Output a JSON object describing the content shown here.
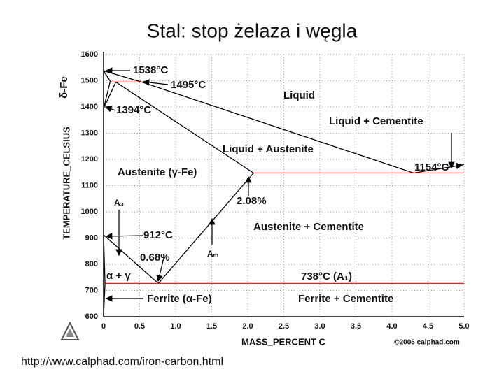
{
  "chart_data": {
    "type": "line",
    "title": "Stal: stop żelaza i węgla",
    "ylabel": "TEMPERATURE_CELSIUS",
    "xlabel": "MASS_PERCENT C",
    "credit": "©2006 calphad.com",
    "source": "http://www.calphad.com/iron-carbon.html",
    "xlim": [
      0,
      5
    ],
    "ylim": [
      600,
      1600
    ],
    "xticks": [
      0,
      0.5,
      {
        "value": 1,
        "label": "1.0"
      },
      1.5,
      {
        "value": 2,
        "label": "2.0"
      },
      2.5,
      {
        "value": 3,
        "label": "3.0"
      },
      3.5,
      {
        "value": 4,
        "label": "4.0"
      },
      4.5,
      {
        "value": 5,
        "label": "5.0"
      }
    ],
    "yticks": [
      600,
      700,
      800,
      900,
      1000,
      1100,
      1200,
      1300,
      1400,
      1500,
      1600
    ],
    "grid": true,
    "series": [
      {
        "color": "#000000",
        "x": [
          0,
          0.53,
          4.3,
          5.0
        ],
        "values": [
          1538,
          1495,
          1148,
          1180
        ]
      },
      {
        "color": "#000000",
        "x": [
          0,
          0.1
        ],
        "values": [
          1538,
          1495
        ]
      },
      {
        "color": "#000000",
        "x": [
          0,
          0.09
        ],
        "values": [
          1394,
          1495
        ]
      },
      {
        "color": "#000000",
        "x": [
          0,
          0.17,
          2.08
        ],
        "values": [
          1394,
          1495,
          1148
        ]
      },
      {
        "color": "#000000",
        "x": [
          2.08,
          0.76
        ],
        "values": [
          1148,
          727
        ]
      },
      {
        "color": "#000000",
        "x": [
          0,
          0.76
        ],
        "values": [
          912,
          727
        ]
      },
      {
        "color": "#000000",
        "x": [
          0,
          0.02,
          0
        ],
        "values": [
          912,
          727,
          600
        ]
      },
      {
        "color": "#e02020",
        "x": [
          0.1,
          0.53
        ],
        "values": [
          1495,
          1495
        ]
      },
      {
        "color": "#e02020",
        "x": [
          2.08,
          5.0
        ],
        "values": [
          1148,
          1148
        ]
      },
      {
        "color": "#e02020",
        "x": [
          0.02,
          5.0
        ],
        "values": [
          727,
          727
        ]
      }
    ],
    "annotations": [
      "δ-Fe",
      "1538°C",
      "1495°C",
      "1394°C",
      "Liquid",
      "Liquid + Cementite",
      "Liquid + Austenite",
      "1154°C",
      "Austenite (γ-Fe)",
      "A₃",
      "2.08%",
      "912°C",
      "Austenite + Cementite",
      "Aₘ",
      "0.68%",
      "α + γ",
      "738°C (A₁)",
      "Ferrite (α-Fe)",
      "Ferrite + Cementite"
    ]
  }
}
